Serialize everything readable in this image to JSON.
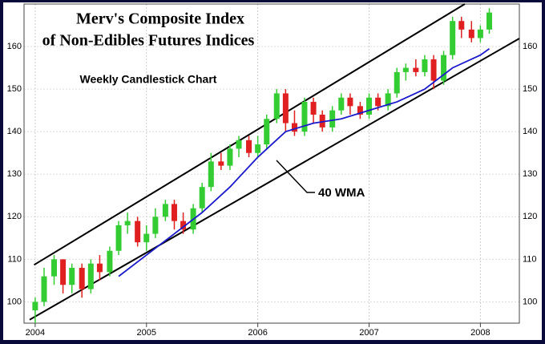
{
  "chart_data": {
    "type": "candlestick",
    "title": "Merv's Composite Index",
    "subtitle": "of Non-Edibles Futures Indices",
    "chart_label": "Weekly Candlestick Chart",
    "annotation": "40 WMA",
    "xlim": [
      2003.9,
      2008.35
    ],
    "xticks": [
      2004,
      2005,
      2006,
      2007,
      2008
    ],
    "ylim": [
      95,
      170
    ],
    "yticks": [
      100,
      110,
      120,
      130,
      140,
      150,
      160
    ],
    "grid": true,
    "up_color": "#33cc33",
    "down_color": "#e02020",
    "candles": {
      "x": [
        2004.0,
        2004.08,
        2004.17,
        2004.25,
        2004.33,
        2004.42,
        2004.5,
        2004.58,
        2004.67,
        2004.75,
        2004.83,
        2004.92,
        2005.0,
        2005.08,
        2005.17,
        2005.25,
        2005.33,
        2005.42,
        2005.5,
        2005.58,
        2005.67,
        2005.75,
        2005.83,
        2005.92,
        2006.0,
        2006.08,
        2006.17,
        2006.25,
        2006.33,
        2006.42,
        2006.5,
        2006.58,
        2006.67,
        2006.75,
        2006.83,
        2006.92,
        2007.0,
        2007.08,
        2007.17,
        2007.25,
        2007.33,
        2007.42,
        2007.5,
        2007.58,
        2007.67,
        2007.75,
        2007.83,
        2007.92,
        2008.0,
        2008.08
      ],
      "open": [
        98,
        100,
        106,
        110,
        104,
        108,
        103,
        109,
        107,
        112,
        118,
        119,
        114,
        116,
        120,
        123,
        119,
        117,
        122,
        127,
        133,
        132,
        136,
        138,
        135,
        137,
        143,
        149,
        142,
        140,
        147,
        144,
        141,
        145,
        148,
        146,
        144,
        148,
        146,
        149,
        154,
        155,
        154,
        157,
        152,
        158,
        166,
        164,
        162,
        164
      ],
      "high": [
        101,
        108,
        111,
        110,
        109,
        109,
        110,
        111,
        113,
        119,
        121,
        120,
        118,
        122,
        124,
        124,
        121,
        123,
        128,
        135,
        135,
        137,
        139,
        139,
        139,
        144,
        150,
        150,
        145,
        148,
        148,
        145,
        146,
        149,
        149,
        147,
        149,
        149,
        150,
        155,
        156,
        157,
        158,
        158,
        159,
        167,
        167,
        166,
        165,
        169
      ],
      "low": [
        95,
        99,
        104,
        102,
        102,
        101,
        102,
        105,
        106,
        111,
        116,
        113,
        112,
        115,
        119,
        117,
        116,
        116,
        121,
        126,
        131,
        131,
        134,
        134,
        134,
        136,
        142,
        140,
        139,
        139,
        142,
        140,
        140,
        144,
        144,
        143,
        143,
        145,
        145,
        148,
        152,
        153,
        153,
        150,
        151,
        157,
        162,
        161,
        161,
        163
      ],
      "close": [
        100,
        106,
        110,
        104,
        108,
        103,
        109,
        107,
        112,
        118,
        119,
        114,
        116,
        120,
        123,
        119,
        117,
        122,
        127,
        133,
        132,
        136,
        138,
        135,
        137,
        143,
        149,
        142,
        140,
        147,
        144,
        141,
        145,
        148,
        146,
        144,
        148,
        146,
        149,
        154,
        155,
        154,
        157,
        152,
        158,
        166,
        164,
        162,
        164,
        168
      ]
    },
    "series": [
      {
        "name": "40 WMA",
        "color": "#1a1acc",
        "x": [
          2004.75,
          2005.0,
          2005.25,
          2005.5,
          2005.75,
          2006.0,
          2006.25,
          2006.5,
          2006.75,
          2007.0,
          2007.25,
          2007.5,
          2007.75,
          2008.0,
          2008.08
        ],
        "values": [
          106,
          111,
          116,
          121,
          127,
          134,
          140,
          142,
          143,
          145,
          147,
          150,
          155,
          158,
          159.5
        ]
      }
    ],
    "channel_lines": [
      {
        "color": "#000000",
        "x": [
          2003.99,
          2007.86
        ],
        "values": [
          108.7,
          170
        ]
      },
      {
        "color": "#000000",
        "x": [
          2003.95,
          2008.35
        ],
        "values": [
          95.8,
          161.9
        ]
      }
    ]
  }
}
